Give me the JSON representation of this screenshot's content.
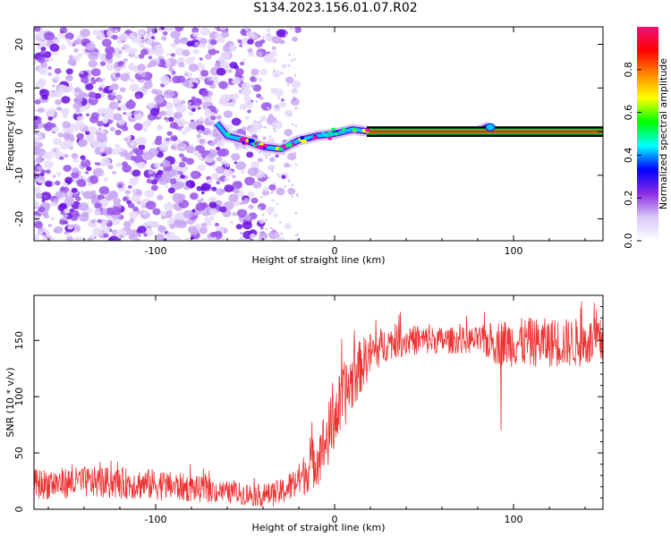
{
  "title": "S134.2023.156.01.07.R02",
  "colors": {
    "purple_scatter": "#7b1fe8",
    "snr_line": "#ee3333",
    "axis": "#000000"
  },
  "chart_data": [
    {
      "type": "heatmap",
      "xlabel": "Height of straight line (km)",
      "ylabel": "Frequency (Hz)",
      "xlim": [
        -168,
        150
      ],
      "ylim": [
        -25,
        24
      ],
      "xticks": [
        -100,
        0,
        100
      ],
      "yticks": [
        -20,
        -10,
        0,
        10,
        20
      ],
      "colorbar": {
        "label": "Normalized spectral amplitude",
        "range": [
          0,
          1
        ],
        "ticks": [
          "0.0",
          "0.2",
          "0.4",
          "0.6",
          "0.8"
        ],
        "colormap": [
          "#ffffff",
          "#d9c6f7",
          "#8a2be2",
          "#0000ff",
          "#00ffff",
          "#00ff00",
          "#ffff00",
          "#ff8800",
          "#ff0000",
          "#ee1177"
        ]
      },
      "features": {
        "noise_region_x": [
          -168,
          -40
        ],
        "signal_line": {
          "x": [
            -66,
            -60,
            -50,
            -40,
            -30,
            -20,
            -10,
            0,
            10,
            20,
            60,
            80,
            85,
            90,
            150
          ],
          "y": [
            2,
            -1,
            -2,
            -3.5,
            -4,
            -2,
            -1,
            -0.5,
            0.5,
            0,
            0,
            0,
            1,
            0,
            0
          ]
        }
      }
    },
    {
      "type": "line",
      "xlabel": "Height of straight line (km)",
      "ylabel": "SNR (10 * v/v)",
      "xlim": [
        -168,
        150
      ],
      "ylim": [
        0,
        190
      ],
      "xticks": [
        -100,
        0,
        100
      ],
      "yticks": [
        0,
        50,
        100,
        150
      ],
      "series": [
        {
          "envelope_x": [
            -168,
            -140,
            -100,
            -60,
            -40,
            -30,
            -20,
            -15,
            -10,
            -5,
            0,
            5,
            10,
            15,
            20,
            30,
            40,
            60,
            80,
            90,
            100,
            120,
            150
          ],
          "mean_y": [
            22,
            24,
            22,
            15,
            12,
            15,
            25,
            35,
            45,
            60,
            80,
            100,
            115,
            128,
            138,
            148,
            150,
            150,
            150,
            148,
            148,
            148,
            148
          ],
          "spread": [
            14,
            14,
            14,
            10,
            10,
            12,
            16,
            20,
            25,
            30,
            30,
            30,
            28,
            24,
            20,
            15,
            14,
            12,
            12,
            20,
            22,
            22,
            22
          ],
          "spike": {
            "x": 93,
            "y": 70
          }
        }
      ]
    }
  ]
}
